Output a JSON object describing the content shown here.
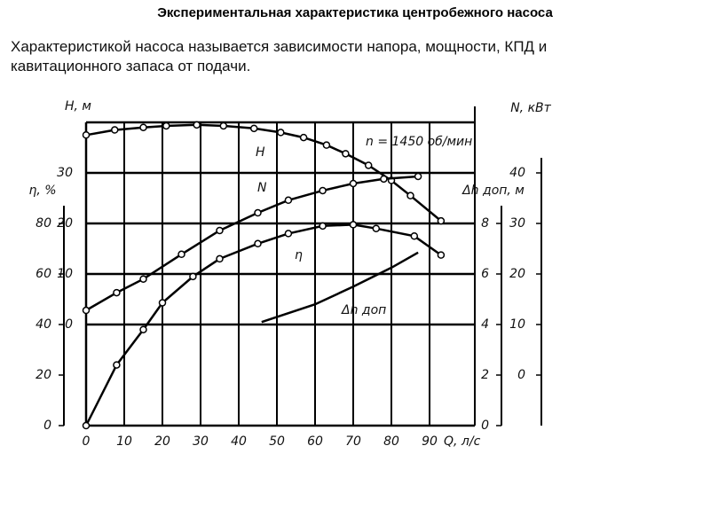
{
  "chart_data": {
    "type": "line",
    "title": "Экспериментальная характеристика центробежного насоса",
    "subtitle": "Характеристикой насоса называется зависимости напора, мощности, КПД и кавитационного запаса от подачи.",
    "x_label": "Q, л/с",
    "xlim": [
      0,
      100
    ],
    "xticks": [
      0,
      10,
      20,
      30,
      40,
      50,
      60,
      70,
      80,
      90
    ],
    "grid": true,
    "axes": [
      {
        "label": "H, м",
        "lim": [
          -20,
          40
        ],
        "ticks": [
          0,
          10,
          20,
          30
        ]
      },
      {
        "label": "η, %",
        "lim": [
          0,
          120
        ],
        "ticks": [
          0,
          20,
          40,
          60,
          80
        ]
      },
      {
        "label": "N, кВт",
        "lim": [
          -10,
          50
        ],
        "ticks": [
          0,
          10,
          20,
          30,
          40
        ]
      },
      {
        "label": "Δh доп, м",
        "lim": [
          0,
          12
        ],
        "ticks": [
          0,
          2,
          4,
          6,
          8
        ]
      }
    ],
    "series": [
      {
        "name": "H",
        "axis": 0,
        "color": "#000000",
        "markers": true,
        "x": [
          0,
          7.5,
          15,
          21,
          29,
          36,
          44,
          51,
          57,
          63,
          68,
          74,
          80,
          85,
          93
        ],
        "values": [
          37.5,
          38.5,
          39,
          39.3,
          39.5,
          39.3,
          38.8,
          38,
          37,
          35.5,
          33.8,
          31.5,
          28.5,
          25.5,
          20.5
        ]
      },
      {
        "name": "N",
        "axis": 2,
        "color": "#000000",
        "markers": true,
        "x": [
          0,
          8,
          15,
          25,
          35,
          45,
          53,
          62,
          70,
          78,
          87
        ],
        "values": [
          12.8,
          16.3,
          19,
          23.9,
          28.6,
          32.1,
          34.6,
          36.5,
          37.9,
          38.8,
          39.3
        ]
      },
      {
        "name": "η",
        "axis": 1,
        "color": "#000000",
        "markers": true,
        "x": [
          0,
          8,
          15,
          20,
          28,
          35,
          45,
          53,
          62,
          70,
          76,
          86,
          93
        ],
        "values": [
          0,
          24,
          38,
          48.6,
          59,
          66,
          72,
          76,
          79,
          79.5,
          78,
          75,
          67.5
        ]
      },
      {
        "name": "Δh доп",
        "axis": 3,
        "color": "#000000",
        "markers": false,
        "x": [
          46,
          60,
          70,
          80,
          87
        ],
        "values": [
          4.1,
          4.8,
          5.5,
          6.25,
          6.85
        ]
      }
    ],
    "annotation": "n = 1450 об/мин"
  }
}
